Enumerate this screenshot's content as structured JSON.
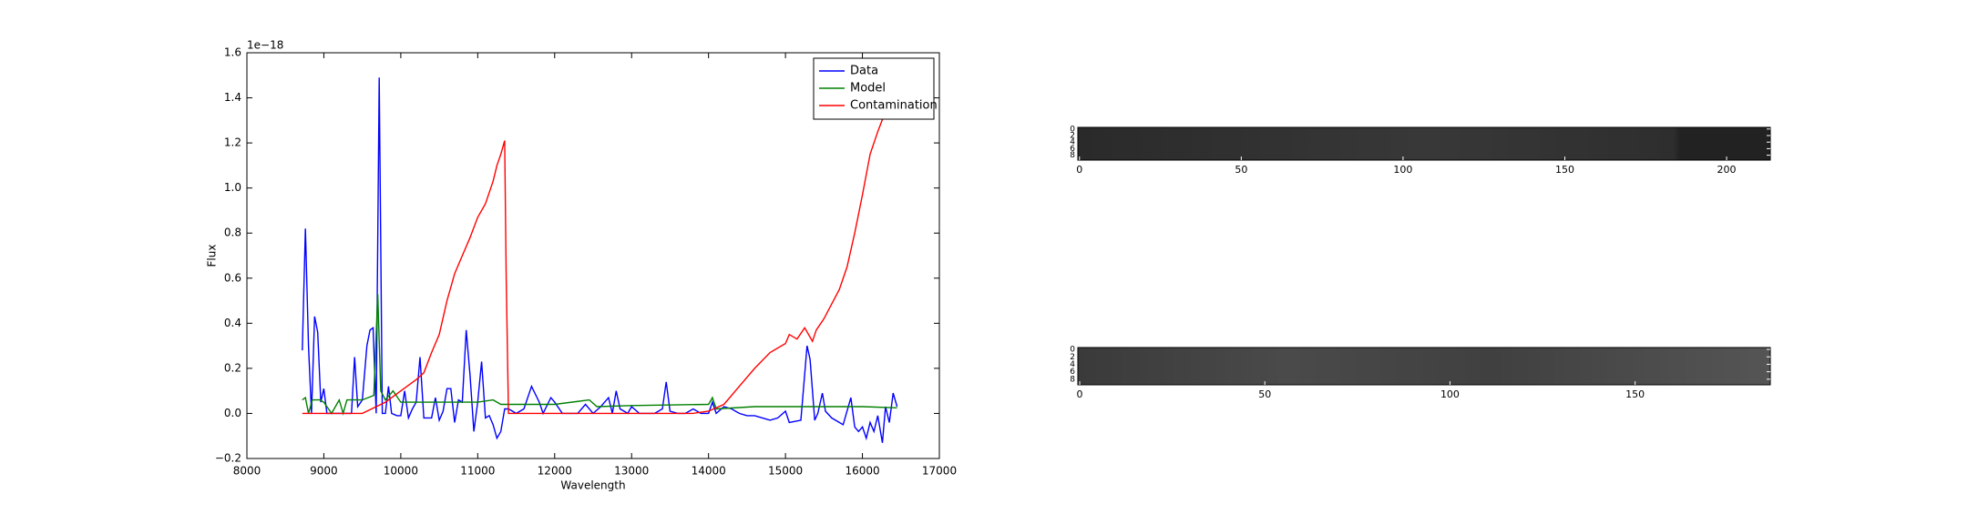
{
  "chart_data": [
    {
      "type": "line",
      "xlabel": "Wavelength",
      "ylabel": "Flux",
      "y_offset_text": "1e−18",
      "xlim": [
        8000,
        17000
      ],
      "ylim": [
        -0.2,
        1.6
      ],
      "xticks": [
        8000,
        9000,
        10000,
        11000,
        12000,
        13000,
        14000,
        15000,
        16000,
        17000
      ],
      "yticks": [
        {
          "value": -0.2,
          "label": "−0.2"
        },
        {
          "value": 0,
          "label": "0.0"
        },
        0.2,
        0.4,
        0.6,
        0.8,
        {
          "value": 1,
          "label": "1.0"
        },
        1.2,
        1.4,
        1.6
      ],
      "legend": "upper right",
      "series": [
        {
          "name": "Data",
          "color": "#0000ff",
          "x": [
            8720,
            8760,
            8800,
            8840,
            8880,
            8920,
            8960,
            9000,
            9040,
            9100,
            9200,
            9300,
            9360,
            9400,
            9440,
            9500,
            9560,
            9600,
            9640,
            9680,
            9720,
            9760,
            9800,
            9840,
            9880,
            9950,
            10000,
            10050,
            10100,
            10150,
            10200,
            10250,
            10300,
            10400,
            10450,
            10500,
            10550,
            10600,
            10650,
            10700,
            10750,
            10800,
            10850,
            10900,
            10950,
            11000,
            11050,
            11100,
            11150,
            11200,
            11250,
            11300,
            11350,
            11400,
            11500,
            11600,
            11700,
            11800,
            11850,
            11950,
            12000,
            12100,
            12200,
            12300,
            12400,
            12500,
            12600,
            12700,
            12750,
            12800,
            12850,
            12950,
            13000,
            13100,
            13200,
            13300,
            13400,
            13450,
            13500,
            13600,
            13700,
            13800,
            13900,
            14000,
            14050,
            14100,
            14200,
            14300,
            14400,
            14500,
            14600,
            14700,
            14800,
            14900,
            15000,
            15050,
            15200,
            15280,
            15320,
            15380,
            15420,
            15480,
            15520,
            15600,
            15700,
            15750,
            15850,
            15900,
            15950,
            16000,
            16050,
            16100,
            16150,
            16200,
            16260,
            16300,
            16350,
            16400,
            16450
          ],
          "values": [
            0.28,
            0.82,
            0.3,
            0.0,
            0.43,
            0.36,
            0.05,
            0.11,
            0.0,
            0.0,
            0.0,
            0.0,
            0.0,
            0.25,
            0.03,
            0.06,
            0.3,
            0.37,
            0.38,
            0.0,
            1.49,
            0.0,
            0.0,
            0.12,
            0.0,
            -0.01,
            -0.01,
            0.1,
            -0.02,
            0.02,
            0.05,
            0.25,
            -0.02,
            -0.02,
            0.07,
            -0.03,
            0.01,
            0.11,
            0.11,
            -0.04,
            0.06,
            0.05,
            0.37,
            0.17,
            -0.08,
            0.05,
            0.23,
            -0.02,
            -0.01,
            -0.05,
            -0.11,
            -0.08,
            0.02,
            0.02,
            0.0,
            0.02,
            0.12,
            0.05,
            0.0,
            0.07,
            0.05,
            0.0,
            0.0,
            0.0,
            0.04,
            0.0,
            0.03,
            0.07,
            0.0,
            0.1,
            0.02,
            0.0,
            0.03,
            0.0,
            0.0,
            0.0,
            0.02,
            0.14,
            0.01,
            0.0,
            0.0,
            0.02,
            0.0,
            0.0,
            0.05,
            0.0,
            0.03,
            0.02,
            0.0,
            -0.01,
            -0.01,
            -0.02,
            -0.03,
            -0.02,
            0.01,
            -0.04,
            -0.03,
            0.3,
            0.24,
            -0.03,
            0.0,
            0.09,
            0.01,
            -0.02,
            -0.04,
            -0.05,
            0.07,
            -0.06,
            -0.08,
            -0.06,
            -0.11,
            -0.04,
            -0.08,
            -0.01,
            -0.13,
            0.03,
            -0.04,
            0.09,
            0.03
          ]
        },
        {
          "name": "Model",
          "color": "#008000",
          "x": [
            8720,
            8760,
            8800,
            8850,
            8950,
            9000,
            9100,
            9200,
            9250,
            9300,
            9500,
            9650,
            9700,
            9740,
            9800,
            9900,
            10000,
            10500,
            11000,
            11200,
            11300,
            12000,
            12450,
            12550,
            13000,
            14000,
            14050,
            14100,
            14600,
            15000,
            16000,
            16450
          ],
          "values": [
            0.06,
            0.07,
            0.0,
            0.06,
            0.06,
            0.05,
            0.0,
            0.06,
            0.0,
            0.06,
            0.06,
            0.08,
            0.53,
            0.1,
            0.06,
            0.1,
            0.05,
            0.05,
            0.05,
            0.06,
            0.04,
            0.04,
            0.06,
            0.03,
            0.035,
            0.04,
            0.07,
            0.02,
            0.03,
            0.03,
            0.03,
            0.025
          ]
        },
        {
          "name": "Contamination",
          "color": "#ff0000",
          "x": [
            8720,
            9500,
            9800,
            10000,
            10200,
            10300,
            10400,
            10500,
            10600,
            10700,
            10800,
            10900,
            11000,
            11100,
            11200,
            11250,
            11300,
            11350,
            11370,
            11400,
            12000,
            13000,
            13800,
            14000,
            14200,
            14400,
            14600,
            14800,
            15000,
            15050,
            15150,
            15250,
            15350,
            15400,
            15500,
            15700,
            15800,
            15900,
            16000,
            16100,
            16200,
            16300,
            16400,
            16450
          ],
          "values": [
            0,
            0,
            0.05,
            0.1,
            0.15,
            0.18,
            0.27,
            0.35,
            0.5,
            0.62,
            0.7,
            0.78,
            0.87,
            0.93,
            1.03,
            1.1,
            1.15,
            1.21,
            0.6,
            0.0,
            0,
            0,
            0.0,
            0.01,
            0.04,
            0.12,
            0.2,
            0.27,
            0.31,
            0.35,
            0.33,
            0.38,
            0.32,
            0.37,
            0.42,
            0.55,
            0.65,
            0.8,
            0.97,
            1.15,
            1.25,
            1.34,
            1.4,
            1.43
          ]
        }
      ]
    },
    {
      "type": "image",
      "xlim": [
        -0.5,
        213.5
      ],
      "ylim": [
        9.5,
        -0.5
      ],
      "xticks": [
        0,
        50,
        100,
        150,
        200
      ],
      "yticks": [
        0,
        2,
        4,
        6,
        8
      ]
    },
    {
      "type": "image",
      "xlim": [
        -0.5,
        186.5
      ],
      "ylim": [
        9.5,
        -0.5
      ],
      "xticks": [
        0,
        50,
        100,
        150
      ],
      "yticks": [
        0,
        2,
        4,
        6,
        8
      ]
    }
  ]
}
